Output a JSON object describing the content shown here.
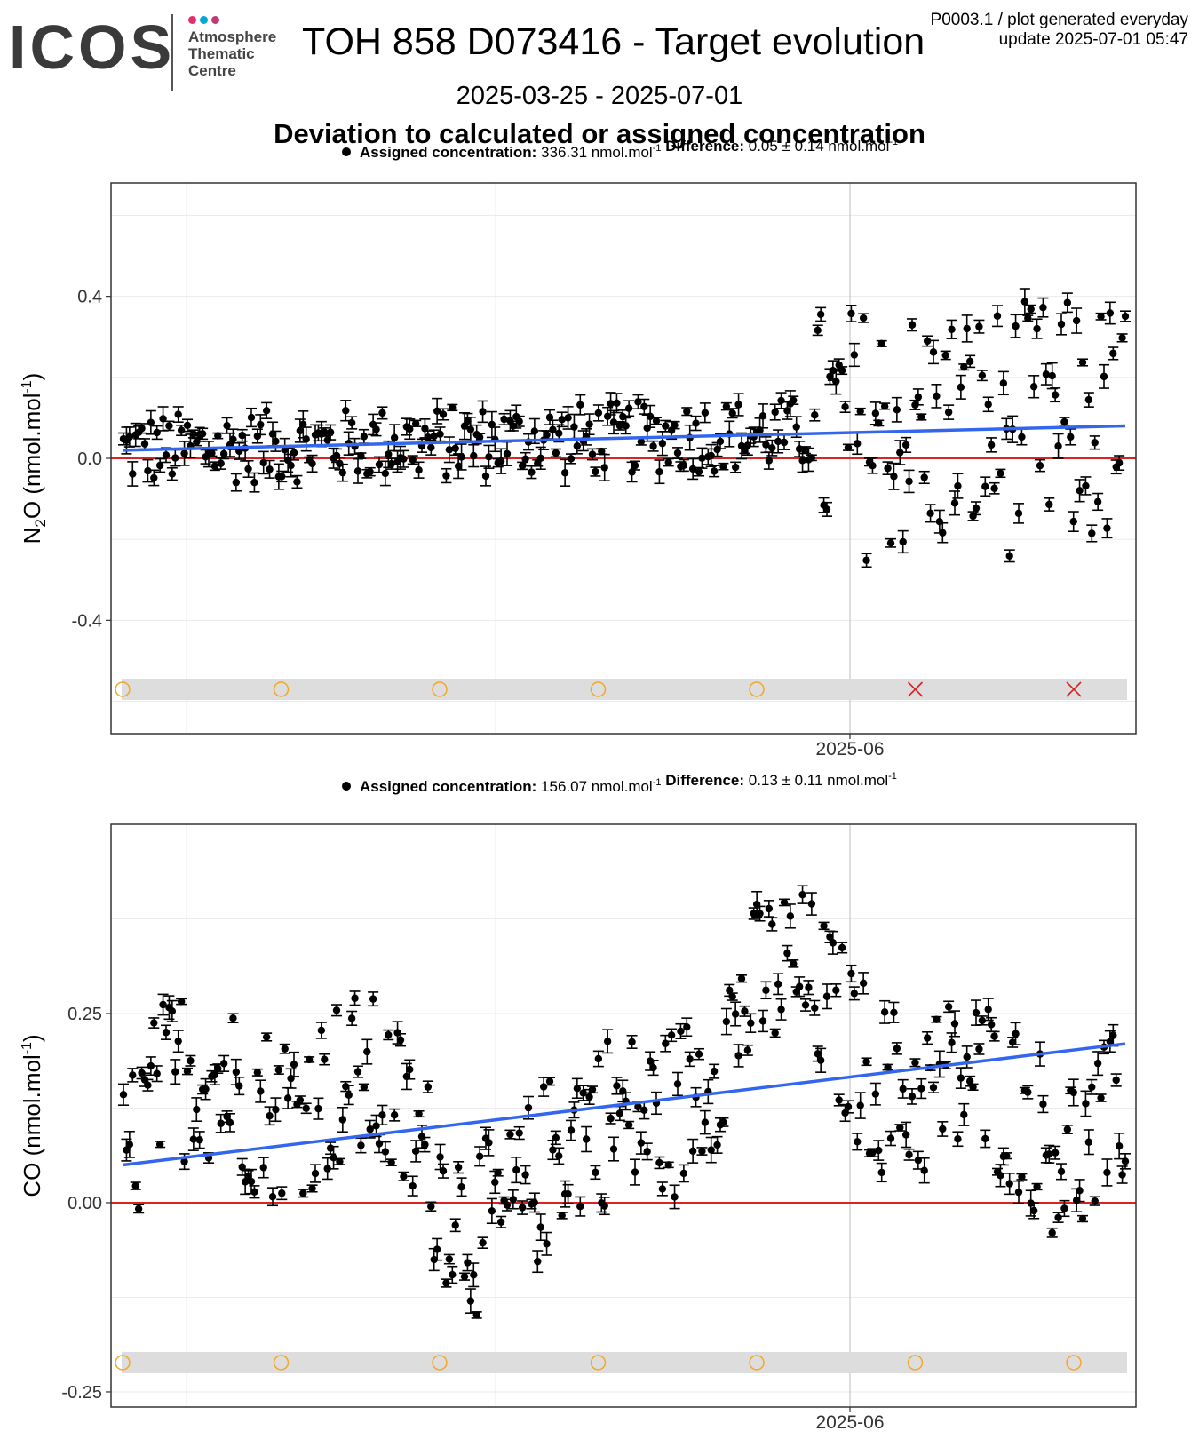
{
  "header": {
    "logo_text": "ICOS",
    "logo_subtitle": "Atmosphere\nThematic\nCentre",
    "logo_dot_colors": [
      "#e0306e",
      "#00a8d6",
      "#c03a78"
    ],
    "title": "TOH 858 D073416 - Target evolution",
    "plot_id": "P0003.1 / plot generated everyday",
    "update": "update  2025-07-01 05:47",
    "date_range": "2025-03-25 - 2025-07-01",
    "subtitle": "Deviation to calculated or assigned concentration"
  },
  "colors": {
    "points": "#000000",
    "trend": "#3366ee",
    "zero_line": "#dd2222",
    "ok_marker": "#f5a623",
    "bad_marker": "#dd2222",
    "status_band": "#dddddd"
  },
  "chart_data": [
    {
      "type": "scatter",
      "gas": "N2O",
      "ylabel": "N2O (nmol.mol-1)",
      "legend": {
        "assigned_label": "Assigned concentration:",
        "assigned_value": "336.31 nmol.mol",
        "difference_label": "Difference:",
        "difference_value": "0.05 ± 0.14 nmol.mol"
      },
      "xlim": [
        "2025-03-25",
        "2025-07-01"
      ],
      "ylim": [
        -0.68,
        0.68
      ],
      "y_ticks": [
        -0.4,
        0.0,
        0.4
      ],
      "y_tick_labels": [
        "-0.4",
        "0.0",
        "0.4"
      ],
      "x_tick_labels": [
        "2025-06"
      ],
      "trend": {
        "start": 0.02,
        "end": 0.08
      },
      "status_markers": [
        "ok",
        "ok",
        "ok",
        "ok",
        "ok",
        "bad",
        "bad"
      ],
      "grid": true
    },
    {
      "type": "scatter",
      "gas": "CO",
      "ylabel": "CO (nmol.mol-1)",
      "legend": {
        "assigned_label": "Assigned concentration:",
        "assigned_value": "156.07 nmol.mol",
        "difference_label": "Difference:",
        "difference_value": "0.13 ± 0.11 nmol.mol"
      },
      "xlim": [
        "2025-03-25",
        "2025-07-01"
      ],
      "ylim": [
        -0.27,
        0.5
      ],
      "y_ticks": [
        -0.25,
        0.0,
        0.25
      ],
      "y_tick_labels": [
        "-0.25",
        "0.00",
        "0.25"
      ],
      "x_tick_labels": [
        "2025-06"
      ],
      "trend": {
        "start": 0.05,
        "end": 0.21
      },
      "status_markers": [
        "ok",
        "ok",
        "ok",
        "ok",
        "ok",
        "ok",
        "ok"
      ],
      "grid": true
    }
  ]
}
